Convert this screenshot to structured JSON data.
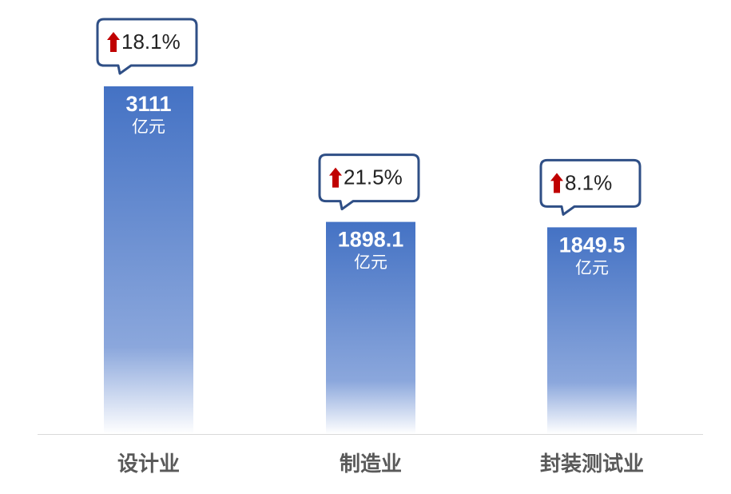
{
  "chart_data": {
    "type": "bar",
    "categories": [
      "设计业",
      "制造业",
      "封装测试业"
    ],
    "values": [
      3111,
      1898.1,
      1849.5
    ],
    "unit": "亿元",
    "growth": [
      "18.1%",
      "21.5%",
      "8.1%"
    ],
    "color": "#4472c4"
  }
}
